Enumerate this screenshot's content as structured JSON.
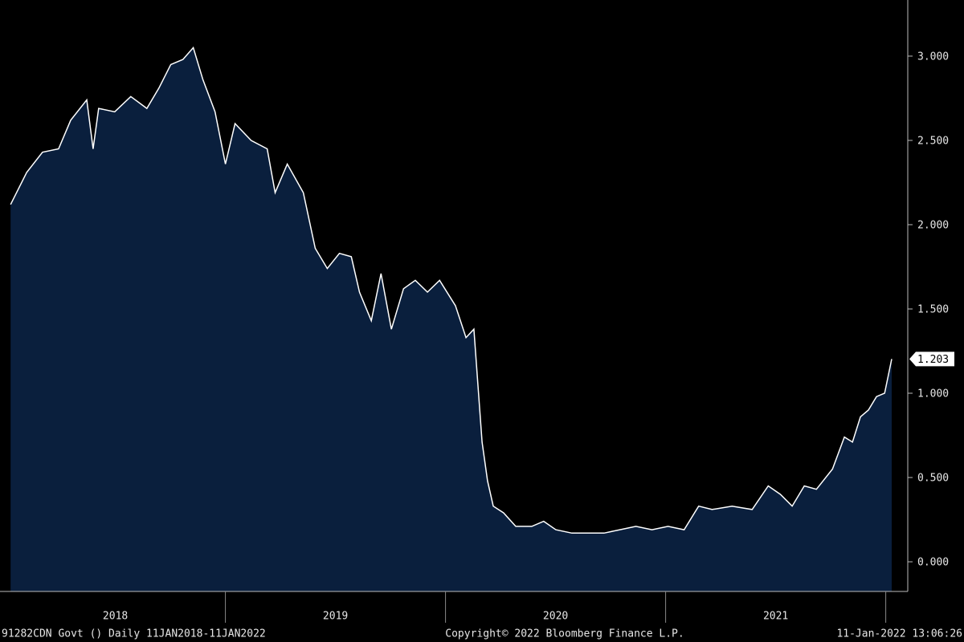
{
  "chart_data": {
    "type": "area",
    "x": [
      2018.024,
      2018.097,
      2018.169,
      2018.242,
      2018.297,
      2018.37,
      2018.399,
      2018.424,
      2018.497,
      2018.57,
      2018.643,
      2018.698,
      2018.752,
      2018.807,
      2018.854,
      2018.898,
      2018.953,
      2019.0,
      2019.044,
      2019.117,
      2019.19,
      2019.226,
      2019.281,
      2019.354,
      2019.408,
      2019.463,
      2019.518,
      2019.572,
      2019.609,
      2019.663,
      2019.707,
      2019.754,
      2019.809,
      2019.863,
      2019.918,
      2019.973,
      2020.045,
      2020.093,
      2020.129,
      2020.166,
      2020.191,
      2020.217,
      2020.264,
      2020.319,
      2020.392,
      2020.446,
      2020.501,
      2020.574,
      2020.647,
      2020.72,
      2020.792,
      2020.865,
      2020.938,
      2021.011,
      2021.084,
      2021.15,
      2021.211,
      2021.302,
      2021.393,
      2021.466,
      2021.521,
      2021.575,
      2021.63,
      2021.685,
      2021.758,
      2021.812,
      2021.849,
      2021.885,
      2021.921,
      2021.958,
      2021.995,
      2022.027
    ],
    "values": [
      2.12,
      2.31,
      2.43,
      2.45,
      2.62,
      2.74,
      2.45,
      2.69,
      2.67,
      2.76,
      2.69,
      2.81,
      2.95,
      2.98,
      3.05,
      2.86,
      2.67,
      2.36,
      2.6,
      2.5,
      2.45,
      2.19,
      2.36,
      2.19,
      1.86,
      1.74,
      1.83,
      1.81,
      1.6,
      1.43,
      1.71,
      1.38,
      1.62,
      1.67,
      1.6,
      1.67,
      1.52,
      1.33,
      1.38,
      0.71,
      0.48,
      0.33,
      0.29,
      0.21,
      0.21,
      0.24,
      0.19,
      0.17,
      0.17,
      0.17,
      0.19,
      0.21,
      0.19,
      0.21,
      0.19,
      0.33,
      0.31,
      0.33,
      0.31,
      0.45,
      0.4,
      0.33,
      0.45,
      0.43,
      0.55,
      0.74,
      0.71,
      0.86,
      0.9,
      0.98,
      1.0,
      1.203
    ],
    "color": "#0a1f3d",
    "line_color": "#ffffff",
    "xlim": [
      2017.976,
      2022.1
    ],
    "ylim": [
      -0.176,
      3.333
    ],
    "xticks": [
      {
        "value": 2018.5,
        "label": "2018"
      },
      {
        "value": 2019.5,
        "label": "2019"
      },
      {
        "value": 2020.5,
        "label": "2020"
      },
      {
        "value": 2021.5,
        "label": "2021"
      }
    ],
    "yticks": [
      {
        "value": 0,
        "label": "0.000"
      },
      {
        "value": 0.5,
        "label": "0.500"
      },
      {
        "value": 1,
        "label": "1.000"
      },
      {
        "value": 1.5,
        "label": "1.500"
      },
      {
        "value": 2,
        "label": "2.000"
      },
      {
        "value": 2.5,
        "label": "2.500"
      },
      {
        "value": 3,
        "label": "3.000"
      }
    ],
    "footer_left": "91282CDN Govt ()  Daily 11JAN2018-11JAN2022",
    "footer_center": "Copyright© 2022 Bloomberg Finance L.P.",
    "footer_right": "11-Jan-2022 13:06:26"
  }
}
